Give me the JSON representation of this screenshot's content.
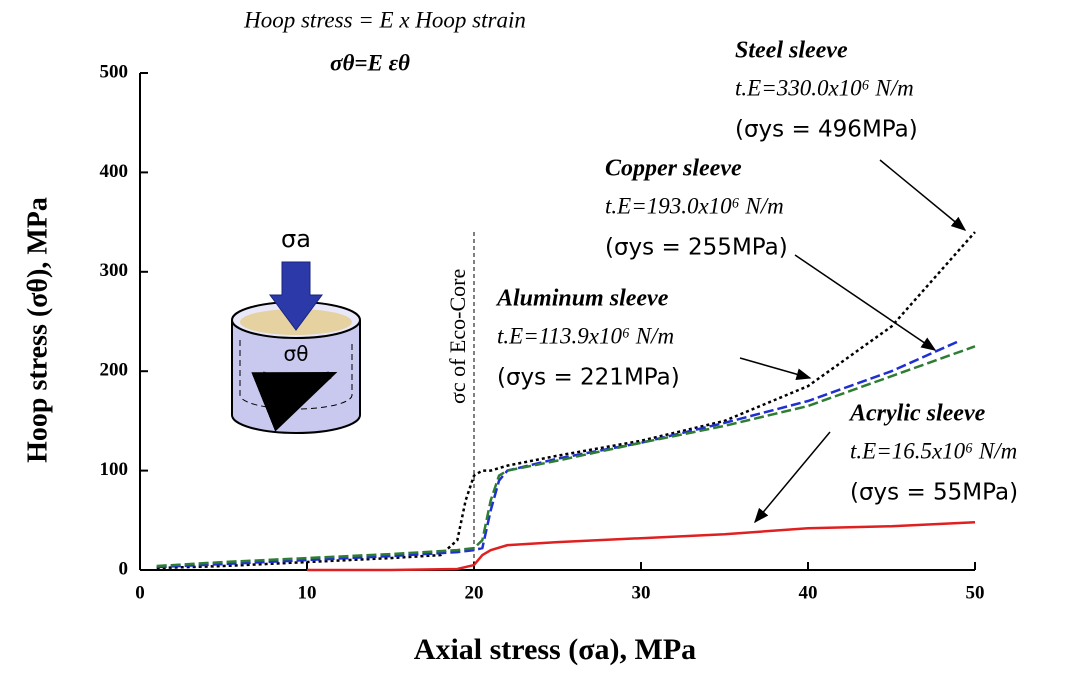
{
  "chart_data": {
    "type": "line",
    "title": "Hoop stress = E x Hoop strain",
    "subtitle": "σθ=E εθ",
    "x_label": "Axial stress (σa), MPa",
    "y_label": "Hoop stress (σθ),  MPa",
    "xlim": [
      0,
      50
    ],
    "xticks": [
      0,
      10,
      20,
      30,
      40,
      50
    ],
    "ylim": [
      0,
      500
    ],
    "yticks": [
      0,
      100,
      200,
      300,
      400,
      500
    ],
    "series": [
      {
        "color": "#000000",
        "style": "dotted",
        "x": [
          1,
          5,
          10,
          15,
          18,
          19,
          19.5,
          20,
          20.5,
          21,
          22,
          25,
          30,
          35,
          40,
          45,
          50
        ],
        "values": [
          2,
          4,
          8,
          12,
          15,
          30,
          70,
          95,
          100,
          100,
          105,
          115,
          130,
          150,
          185,
          245,
          340
        ]
      },
      {
        "color": "#1f2fd0",
        "style": "dashed",
        "x": [
          1,
          5,
          10,
          15,
          19,
          20,
          20.5,
          21,
          21.5,
          22,
          25,
          30,
          35,
          40,
          45,
          49
        ],
        "values": [
          3,
          6,
          10,
          14,
          18,
          20,
          22,
          60,
          90,
          100,
          112,
          128,
          148,
          170,
          200,
          230
        ]
      },
      {
        "color": "#2e7d32",
        "style": "dashed",
        "x": [
          1,
          5,
          10,
          15,
          19,
          20,
          20.5,
          21,
          21.5,
          22,
          25,
          30,
          35,
          40,
          45,
          50
        ],
        "values": [
          4,
          8,
          12,
          16,
          20,
          22,
          30,
          70,
          95,
          100,
          110,
          128,
          145,
          165,
          195,
          225
        ]
      },
      {
        "color": "#e02020",
        "style": "solid",
        "x": [
          10,
          15,
          19,
          20,
          20.5,
          21,
          22,
          25,
          30,
          35,
          40,
          45,
          50
        ],
        "values": [
          0,
          0,
          1,
          5,
          15,
          20,
          25,
          28,
          32,
          36,
          42,
          44,
          48
        ]
      }
    ],
    "reference_line": {
      "x": 20,
      "label": "σc of Eco-Core"
    },
    "annotations": [
      {
        "title": "Steel sleeve",
        "stiffness": "t.E=330.0x10⁶  N/m",
        "yield": "(σys = 496MPa)"
      },
      {
        "title": "Copper sleeve",
        "stiffness": "t.E=193.0x10⁶  N/m",
        "yield": "(σys = 255MPa)"
      },
      {
        "title": "Aluminum sleeve",
        "stiffness": "t.E=113.9x10⁶ N/m",
        "yield": "(σys = 221MPa)"
      },
      {
        "title": "Acrylic sleeve",
        "stiffness": "t.E=16.5x10⁶  N/m",
        "yield": "(σys = 55MPa)"
      }
    ],
    "icon_labels": [
      "σa",
      "σθ"
    ]
  }
}
